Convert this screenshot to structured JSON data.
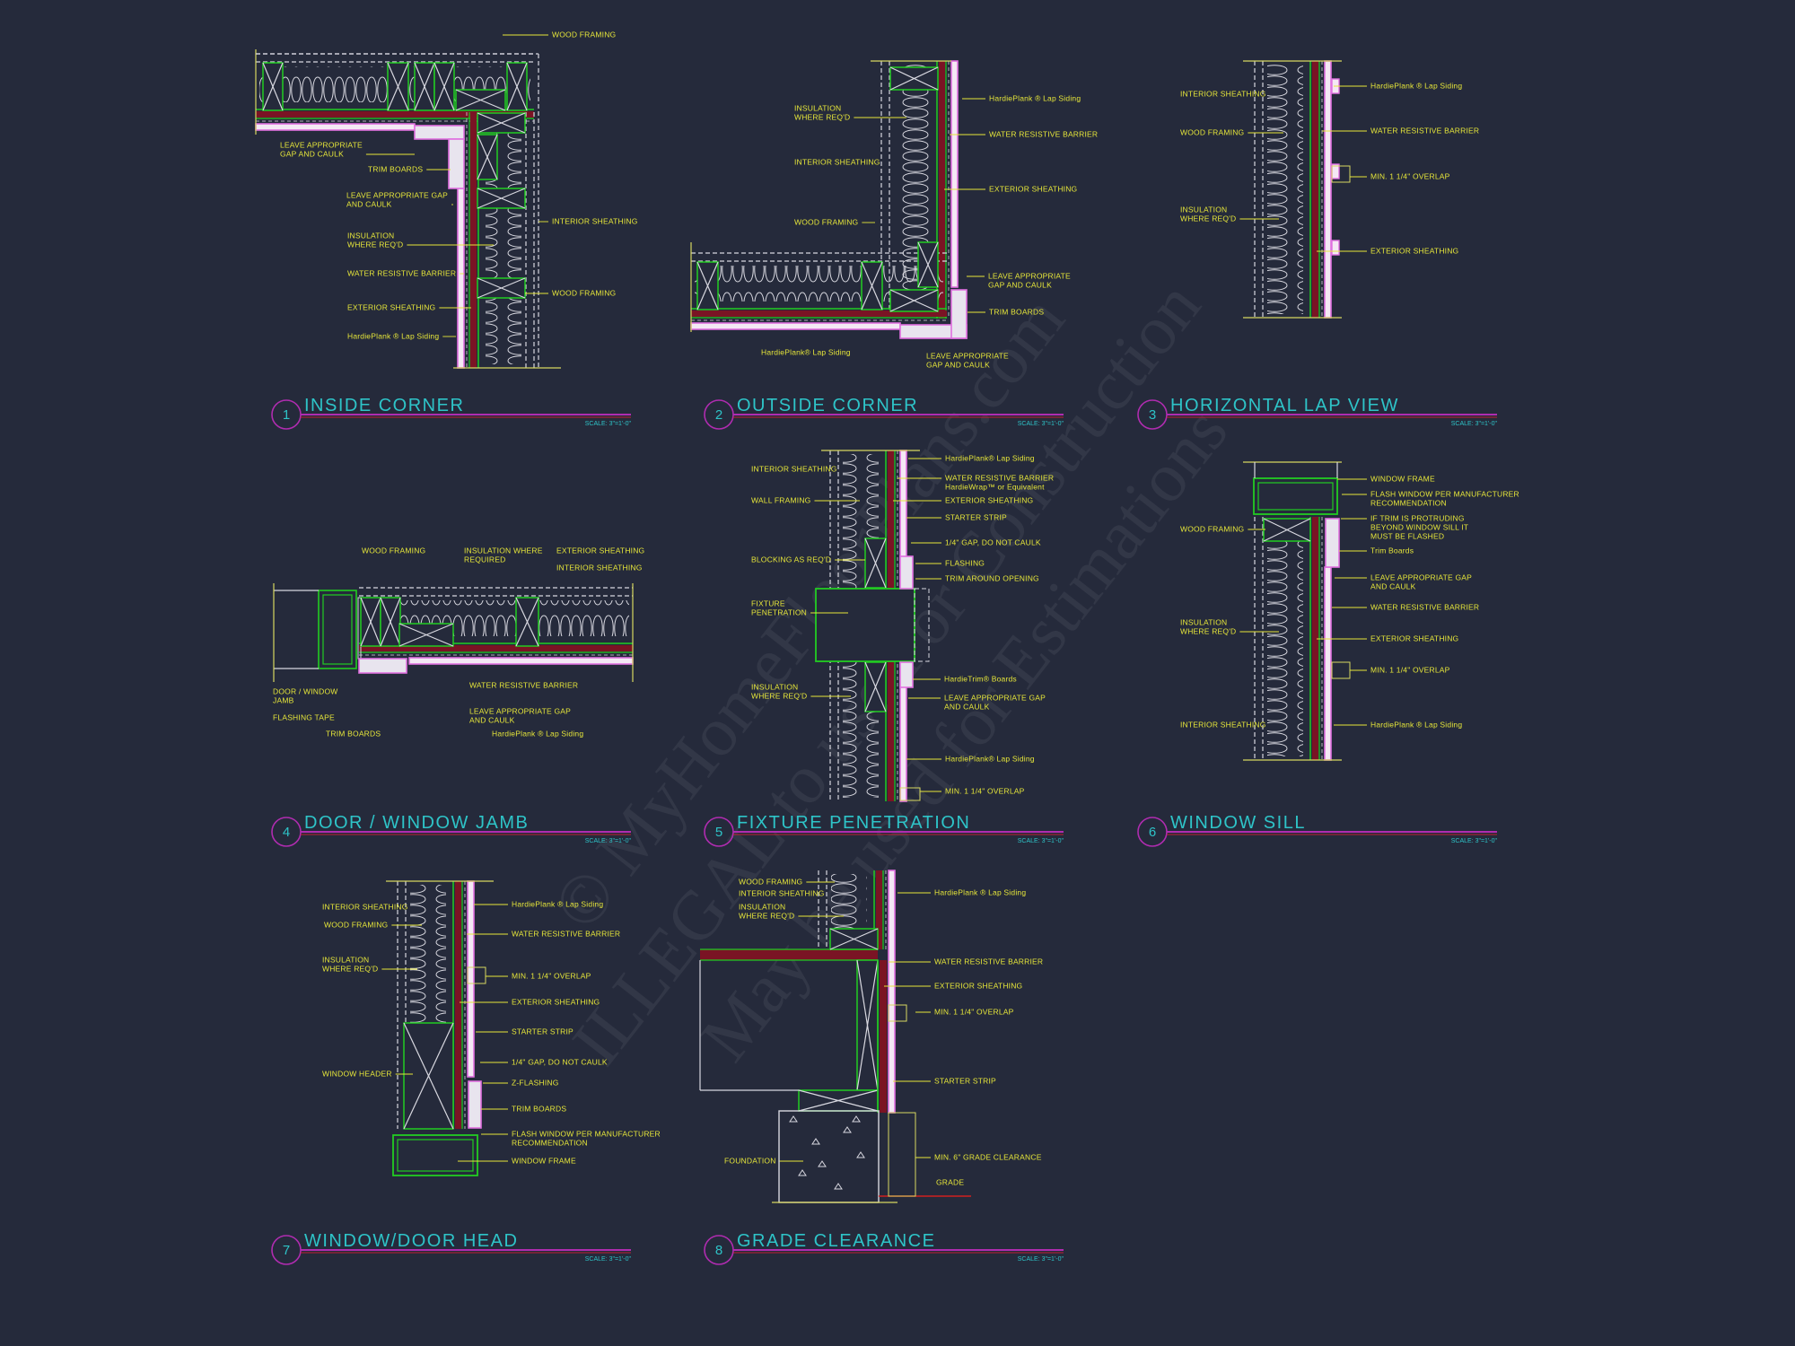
{
  "colors": {
    "background": "#252a3b",
    "framing": "#22cc22",
    "sheathing": "#7a1424",
    "siding": "#e070e0",
    "labels": "#e6e63a",
    "titles": "#2ec4c8",
    "title_bubble": "#b02cb0"
  },
  "watermark": [
    "© MyHomeFloorPlans.com",
    "ILLEGAL to use For Construction",
    "May be used for Estimations"
  ],
  "details": [
    {
      "number": "1",
      "title": "INSIDE CORNER",
      "scale": "SCALE: 3\"=1'-0\"",
      "labels": [
        [
          "WOOD FRAMING"
        ],
        [
          "LEAVE APPROPRIATE",
          "GAP AND CAULK"
        ],
        [
          "TRIM BOARDS"
        ],
        [
          "LEAVE APPROPRIATE GAP",
          "AND CAULK"
        ],
        [
          "INSULATION",
          "WHERE REQ'D"
        ],
        [
          "INTERIOR SHEATHING"
        ],
        [
          "WATER RESISTIVE BARRIER"
        ],
        [
          "WOOD FRAMING"
        ],
        [
          "EXTERIOR SHEATHING"
        ],
        [
          "HardiePlank ® Lap Siding"
        ]
      ]
    },
    {
      "number": "2",
      "title": "OUTSIDE CORNER",
      "scale": "SCALE: 3\"=1'-0\"",
      "labels": [
        [
          "HardiePlank ® Lap Siding"
        ],
        [
          "WATER RESISTIVE BARRIER"
        ],
        [
          "EXTERIOR SHEATHING"
        ],
        [
          "INSULATION",
          "WHERE REQ'D"
        ],
        [
          "INTERIOR SHEATHING"
        ],
        [
          "WOOD FRAMING"
        ],
        [
          "LEAVE APPROPRIATE",
          "GAP AND CAULK"
        ],
        [
          "TRIM BOARDS"
        ],
        [
          "HardiePlank® Lap Siding"
        ],
        [
          "LEAVE APPROPRIATE",
          "GAP AND CAULK"
        ]
      ]
    },
    {
      "number": "3",
      "title": "HORIZONTAL LAP VIEW",
      "scale": "SCALE: 3\"=1'-0\"",
      "labels": [
        [
          "INTERIOR SHEATHING"
        ],
        [
          "WOOD FRAMING"
        ],
        [
          "INSULATION",
          "WHERE REQ'D"
        ],
        [
          "HardiePlank ® Lap Siding"
        ],
        [
          "WATER RESISTIVE BARRIER"
        ],
        [
          "MIN. 1 1/4\" OVERLAP"
        ],
        [
          "EXTERIOR SHEATHING"
        ]
      ]
    },
    {
      "number": "4",
      "title": "DOOR / WINDOW JAMB",
      "scale": "SCALE: 3\"=1'-0\"",
      "labels": [
        [
          "WOOD FRAMING"
        ],
        [
          "INSULATION WHERE",
          "REQUIRED"
        ],
        [
          "EXTERIOR SHEATHING"
        ],
        [
          "INTERIOR SHEATHING"
        ],
        [
          "DOOR / WINDOW",
          "JAMB"
        ],
        [
          "FLASHING TAPE"
        ],
        [
          "TRIM BOARDS"
        ],
        [
          "WATER RESISTIVE BARRIER"
        ],
        [
          "LEAVE APPROPRIATE GAP",
          "AND CAULK"
        ],
        [
          "HardiePlank ® Lap Siding"
        ]
      ]
    },
    {
      "number": "5",
      "title": "FIXTURE PENETRATION",
      "scale": "SCALE: 3\"=1'-0\"",
      "labels": [
        [
          "INTERIOR SHEATHING"
        ],
        [
          "WALL FRAMING"
        ],
        [
          "BLOCKING AS REQ'D"
        ],
        [
          "FIXTURE",
          "PENETRATION"
        ],
        [
          "INSULATION",
          "WHERE REQ'D"
        ],
        [
          "HardiePlank® Lap Siding"
        ],
        [
          "WATER RESISTIVE BARRIER",
          "HardieWrap™ or Equivalent"
        ],
        [
          "EXTERIOR SHEATHING"
        ],
        [
          "STARTER STRIP"
        ],
        [
          "1/4\" GAP, DO NOT CAULK"
        ],
        [
          "FLASHING"
        ],
        [
          "TRIM AROUND OPENING"
        ],
        [
          "HardieTrim® Boards"
        ],
        [
          "LEAVE APPROPRIATE GAP",
          "AND CAULK"
        ],
        [
          "HardiePlank® Lap Siding"
        ],
        [
          "MIN. 1 1/4\" OVERLAP"
        ]
      ]
    },
    {
      "number": "6",
      "title": "WINDOW SILL",
      "scale": "SCALE: 3\"=1'-0\"",
      "labels": [
        [
          "WINDOW FRAME"
        ],
        [
          "FLASH WINDOW PER MANUFACTURER",
          "RECOMMENDATION"
        ],
        [
          "IF TRIM IS PROTRUDING",
          "BEYOND WINDOW SILL IT",
          "MUST BE FLASHED"
        ],
        [
          "Trim Boards"
        ],
        [
          "LEAVE APPROPRIATE GAP",
          "AND CAULK"
        ],
        [
          "WATER RESISTIVE BARRIER"
        ],
        [
          "EXTERIOR SHEATHING"
        ],
        [
          "MIN. 1 1/4\" OVERLAP"
        ],
        [
          "HardiePlank ® Lap Siding"
        ],
        [
          "WOOD FRAMING"
        ],
        [
          "INSULATION",
          "WHERE REQ'D"
        ],
        [
          "INTERIOR SHEATHING"
        ]
      ]
    },
    {
      "number": "7",
      "title": "WINDOW/DOOR HEAD",
      "scale": "SCALE: 3\"=1'-0\"",
      "labels": [
        [
          "INTERIOR SHEATHING"
        ],
        [
          "WOOD FRAMING"
        ],
        [
          "INSULATION",
          "WHERE REQ'D"
        ],
        [
          "WINDOW HEADER"
        ],
        [
          "HardiePlank ® Lap Siding"
        ],
        [
          "WATER RESISTIVE BARRIER"
        ],
        [
          "MIN. 1 1/4\" OVERLAP"
        ],
        [
          "EXTERIOR SHEATHING"
        ],
        [
          "STARTER STRIP"
        ],
        [
          "1/4\" GAP, DO NOT CAULK"
        ],
        [
          "Z-FLASHING"
        ],
        [
          "TRIM BOARDS"
        ],
        [
          "FLASH WINDOW PER MANUFACTURER",
          "RECOMMENDATION"
        ],
        [
          "WINDOW FRAME"
        ]
      ]
    },
    {
      "number": "8",
      "title": "GRADE CLEARANCE",
      "scale": "SCALE: 3\"=1'-0\"",
      "labels": [
        [
          "WOOD FRAMING"
        ],
        [
          "INTERIOR SHEATHING"
        ],
        [
          "INSULATION",
          "WHERE REQ'D"
        ],
        [
          "HardiePlank ® Lap Siding"
        ],
        [
          "WATER RESISTIVE BARRIER"
        ],
        [
          "EXTERIOR SHEATHING"
        ],
        [
          "MIN. 1 1/4\" OVERLAP"
        ],
        [
          "STARTER STRIP"
        ],
        [
          "FOUNDATION"
        ],
        [
          "MIN. 6\" GRADE CLEARANCE"
        ],
        [
          "GRADE"
        ]
      ]
    }
  ]
}
